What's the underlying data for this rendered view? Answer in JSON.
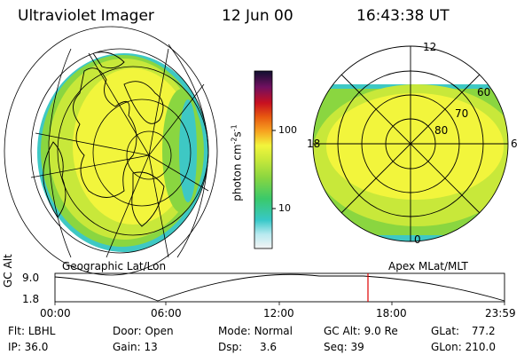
{
  "header": {
    "instrument": "Ultraviolet Imager",
    "date": "12 Jun 00",
    "time": "16:43:38 UT"
  },
  "colorbar": {
    "unit_label": "photon cm",
    "unit_sup1": "-2",
    "unit_mid": "s",
    "unit_sup2": "-1",
    "ticks": [
      "100",
      "10"
    ]
  },
  "left_map": {
    "caption": "Geographic Lat/Lon"
  },
  "right_map": {
    "caption": "Apex MLat/MLT",
    "mlt_labels": [
      "12",
      "18",
      "6",
      "0"
    ],
    "lat_labels": [
      "60",
      "70",
      "80"
    ]
  },
  "timeline": {
    "axis_label": "GC Alt",
    "y_ticks": [
      "9.0",
      "1.8"
    ],
    "x_ticks": [
      "00:00",
      "06:00",
      "12:00",
      "18:00",
      "23:59"
    ]
  },
  "params": [
    [
      {
        "label": "Flt:",
        "value": "LBHL"
      },
      {
        "label": "Door:",
        "value": "Open"
      },
      {
        "label": "Mode:",
        "value": "Normal"
      },
      {
        "label": "GC Alt:",
        "value": "9.0 Re"
      },
      {
        "label": "GLat:",
        "value": "77.2"
      }
    ],
    [
      {
        "label": "IP:",
        "value": "36.0"
      },
      {
        "label": "Gain:",
        "value": "13"
      },
      {
        "label": "Dsp:",
        "value": "3.6"
      },
      {
        "label": "Seq:",
        "value": "39"
      },
      {
        "label": "GLon:",
        "value": "210.0"
      }
    ]
  ],
  "colors": {
    "yellow": "#f2f53c",
    "yellow_green": "#c8e83a",
    "green": "#8ad640",
    "cyan": "#37c8c8",
    "marker": "#e00000"
  }
}
